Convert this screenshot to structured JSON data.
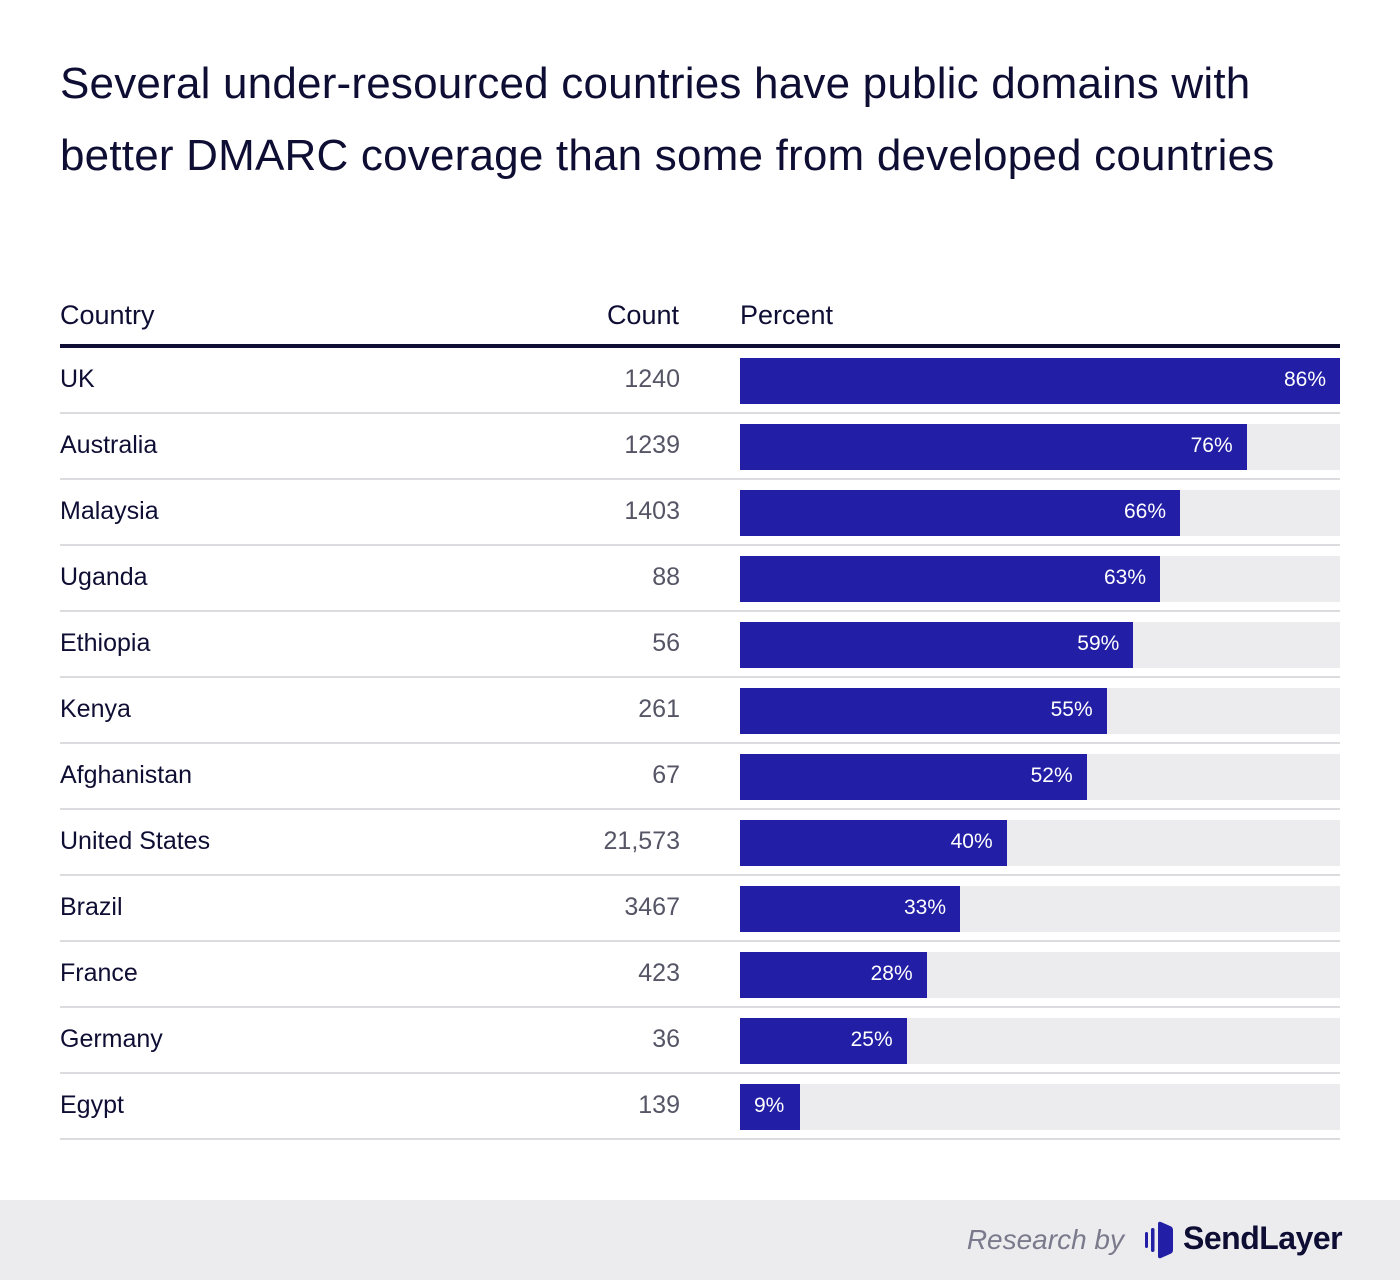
{
  "title": "Several under-resourced countries have public domains with better DMARC coverage than some from developed countries",
  "chart_data": {
    "type": "bar",
    "orientation": "horizontal",
    "title": "Several under-resourced countries have public domains with better DMARC coverage than some from developed countries",
    "columns": [
      "Country",
      "Count",
      "Percent"
    ],
    "categories": [
      "UK",
      "Australia",
      "Malaysia",
      "Uganda",
      "Ethiopia",
      "Kenya",
      "Afghanistan",
      "United States",
      "Brazil",
      "France",
      "Germany",
      "Egypt"
    ],
    "counts": [
      "1240",
      "1239",
      "1403",
      "88",
      "56",
      "261",
      "67",
      "21,573",
      "3467",
      "423",
      "36",
      "139"
    ],
    "values": [
      86,
      76,
      66,
      63,
      59,
      55,
      52,
      40,
      33,
      28,
      25,
      9
    ],
    "xlim": [
      0,
      90
    ],
    "unit": "%",
    "grid": false,
    "colors": {
      "bar": "#221ea5",
      "track": "#ececef",
      "text": "#0e0d33"
    }
  },
  "footer": {
    "research_by": "Research by",
    "brand": "SendLayer",
    "logo_icon": "sendlayer-logo-icon"
  }
}
